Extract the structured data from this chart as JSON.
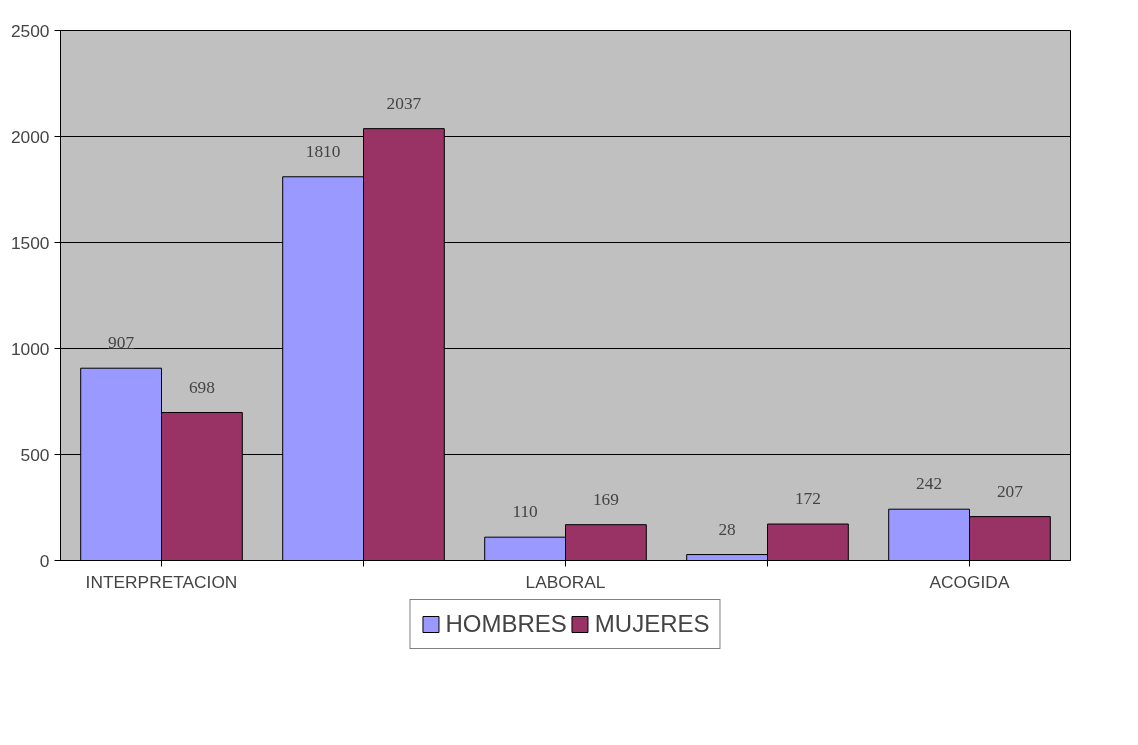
{
  "chart_data": {
    "type": "bar",
    "categories": [
      "INTERPRETACION",
      null,
      "LABORAL",
      null,
      "ACOGIDA"
    ],
    "series": [
      {
        "name": "HOMBRES",
        "color": "#9999ff",
        "values": [
          907,
          1810,
          110,
          28,
          242
        ]
      },
      {
        "name": "MUJERES",
        "color": "#993366",
        "values": [
          698,
          2037,
          169,
          172,
          207
        ]
      }
    ],
    "ylim": [
      0,
      2500
    ],
    "yticks": [
      0,
      500,
      1000,
      1500,
      2000,
      2500
    ],
    "grid": "y",
    "legend": "bottom",
    "data_labels": true
  }
}
